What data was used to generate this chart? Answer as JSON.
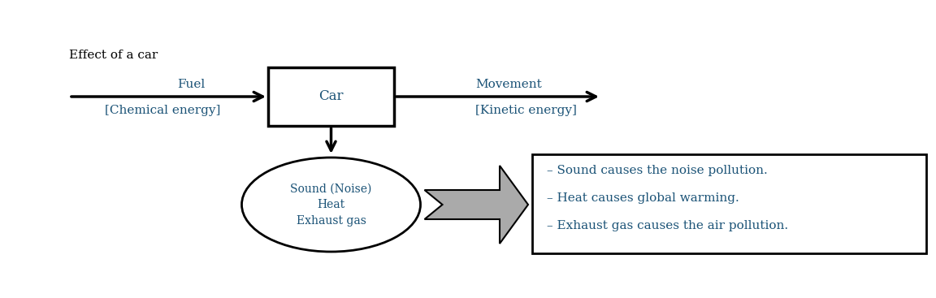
{
  "title": "Effect of a car",
  "bg_color": "#ffffff",
  "fuel_label": "Fuel",
  "chemical_label": "[Chemical energy]",
  "car_label": "Car",
  "movement_label": "Movement",
  "kinetic_label": "[Kinetic energy]",
  "ellipse_lines": [
    "Sound (Noise)",
    "Heat",
    "Exhaust gas"
  ],
  "effect_lines": [
    "– Sound causes the noise pollution.",
    "– Heat causes global warming.",
    "– Exhaust gas causes the air pollution."
  ],
  "teal_color": "#1a5276",
  "black": "#000000",
  "line_width": 2.0,
  "fontsize_title": 11,
  "fontsize_label": 11,
  "fontsize_bracket": 11,
  "fontsize_car": 12,
  "fontsize_effect": 11
}
